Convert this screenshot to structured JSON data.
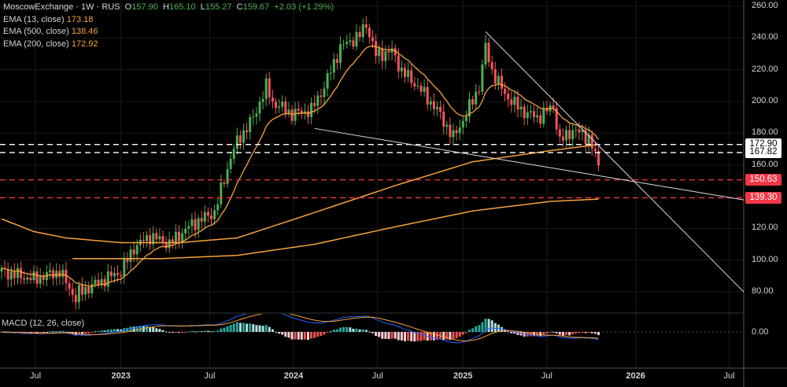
{
  "header": {
    "symbol": "MoscowExchange · 1W · RUS",
    "o_label": "O",
    "o": "157.90",
    "h_label": "H",
    "h": "165.10",
    "l_label": "L",
    "l": "155.27",
    "c_label": "C",
    "c": "159.67",
    "change": "+2.03 (+1.29%)"
  },
  "indicators": [
    {
      "label": "EMA (13, close)",
      "value": "173.18"
    },
    {
      "label": "EMA (500, close)",
      "value": "138.46"
    },
    {
      "label": "EMA (200, close)",
      "value": "172.92"
    }
  ],
  "macd": {
    "label": "MACD (12, 26, close)",
    "zero_label": "0.00"
  },
  "colors": {
    "up": "#4caf50",
    "down": "#f7525f",
    "ema": "#f7a23b",
    "macd_line": "#2962ff",
    "signal_line": "#f7a23b",
    "hist_up": "#26a69a",
    "hist_up_light": "#b2dfdb",
    "hist_down": "#ef5350",
    "hist_down_light": "#ffcdd2"
  },
  "chart_data": {
    "type": "candlestick",
    "ylim": [
      76,
      262
    ],
    "y_ticks": [
      "260.00",
      "240.00",
      "220.00",
      "200.00",
      "180.00",
      "160.00",
      "120.00",
      "100.00",
      "80.00"
    ],
    "y_tick_values": [
      260,
      240,
      220,
      200,
      180,
      160,
      120,
      100,
      80
    ],
    "x_ticks": [
      {
        "label": "Jul",
        "week": 10.5,
        "bold": false
      },
      {
        "label": "2023",
        "week": 37,
        "bold": true
      },
      {
        "label": "Jul",
        "week": 64.5,
        "bold": false
      },
      {
        "label": "2024",
        "week": 90.5,
        "bold": true
      },
      {
        "label": "Jul",
        "week": 116.5,
        "bold": false
      },
      {
        "label": "2025",
        "week": 143,
        "bold": true
      },
      {
        "label": "Jul",
        "week": 169,
        "bold": false
      },
      {
        "label": "2026",
        "week": 196.5,
        "bold": true
      },
      {
        "label": "Jul",
        "week": 225.5,
        "bold": false
      }
    ],
    "close_anchors": {
      "week": [
        0,
        10,
        18,
        23,
        24,
        32,
        37,
        41,
        46,
        52,
        59,
        66,
        71,
        73,
        78,
        82,
        84,
        90,
        96,
        100,
        105,
        111,
        113,
        116,
        121,
        124,
        129,
        135,
        140,
        144,
        148,
        150,
        152,
        156,
        161,
        166,
        171,
        173,
        177,
        182,
        185
      ],
      "price": [
        92.9,
        88,
        92.9,
        75.6,
        79.5,
        88,
        92.9,
        107.8,
        115.2,
        110.3,
        122.7,
        130.1,
        164.8,
        174.7,
        189.6,
        209.4,
        199.5,
        192.1,
        194.6,
        209.4,
        234.2,
        241.7,
        249.1,
        229.3,
        231.7,
        219.3,
        209.4,
        194.6,
        177.2,
        192.1,
        209.4,
        234.2,
        219.3,
        204.5,
        194.6,
        189.6,
        197,
        174.7,
        182.2,
        177.2,
        159.67
      ]
    },
    "ema200_anchors": {
      "week": [
        0,
        10,
        20,
        37,
        55,
        73,
        97,
        122,
        146,
        170,
        185
      ],
      "price": [
        126,
        118,
        114,
        111,
        111,
        114,
        130,
        147,
        162,
        169,
        172.92
      ]
    },
    "ema500_anchors": {
      "week": [
        22,
        50,
        73,
        97,
        122,
        146,
        170,
        185
      ],
      "price": [
        101,
        101,
        103,
        110,
        121,
        131,
        137,
        138.46
      ]
    },
    "levels": [
      {
        "label": "172.90",
        "price": 172.9,
        "color": "white"
      },
      {
        "label": "167.82",
        "price": 167.82,
        "color": "white"
      },
      {
        "label": "150.63",
        "price": 150.63,
        "color": "red"
      },
      {
        "label": "139.30",
        "price": 139.3,
        "color": "red"
      }
    ],
    "trendlines": [
      {
        "from": {
          "week": 150,
          "price": 244
        },
        "to": {
          "week": 230,
          "price": 80
        }
      },
      {
        "from": {
          "week": 97,
          "price": 183
        },
        "to": {
          "week": 230,
          "price": 138
        }
      }
    ]
  }
}
